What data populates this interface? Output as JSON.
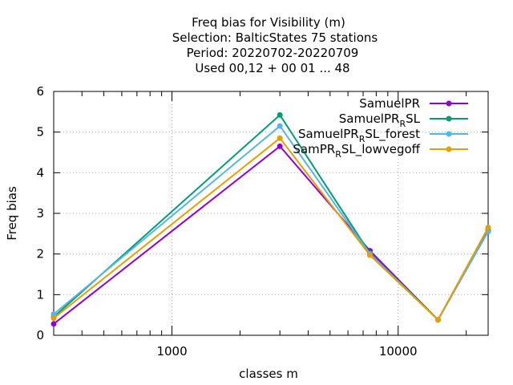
{
  "chart_data": {
    "type": "line",
    "title_lines": [
      "Freq bias  for Visibility (m)",
      "Selection: BalticStates     75 stations",
      "Period: 20220702-20220709",
      "Used  00,12  + 00 01 ... 48"
    ],
    "xlabel": "classes m",
    "ylabel": "Freq bias",
    "x_scale": "log",
    "xlim": [
      300,
      25000
    ],
    "ylim": [
      0,
      6
    ],
    "x_major_ticks": [
      1000,
      10000
    ],
    "x_tick_labels": [
      "1000",
      "10000"
    ],
    "y_ticks": [
      0,
      1,
      2,
      3,
      4,
      5,
      6
    ],
    "y_tick_labels": [
      "0",
      "1",
      "2",
      "3",
      "4",
      "5",
      "6"
    ],
    "grid": true,
    "legend_position": "top-right",
    "x": [
      300,
      3000,
      7500,
      15000,
      25000
    ],
    "series": [
      {
        "name": "SamuelPR",
        "name_main": "SamuelPR",
        "name_sub": "",
        "name_tail": "",
        "color": "#9400d3",
        "values": [
          0.28,
          4.65,
          2.08,
          0.38,
          2.58
        ]
      },
      {
        "name": "SamuelPR_RSL",
        "name_main": "SamuelPR",
        "name_sub": "R",
        "name_tail": "SL",
        "color": "#009e73",
        "values": [
          0.45,
          5.42,
          2.02,
          0.38,
          2.56
        ]
      },
      {
        "name": "SamuelPR_RSL_forest",
        "name_main": "SamuelPR",
        "name_sub": "R",
        "name_tail": "SL_forest",
        "color": "#56b4e9",
        "values": [
          0.52,
          5.15,
          2.0,
          0.38,
          2.55
        ]
      },
      {
        "name": "SamPR_RSL_lowvegoff",
        "name_main": "SamPR",
        "name_sub": "R",
        "name_tail": "SL_lowvegoff",
        "color": "#e69f00",
        "values": [
          0.42,
          4.85,
          1.97,
          0.38,
          2.65
        ]
      }
    ]
  }
}
